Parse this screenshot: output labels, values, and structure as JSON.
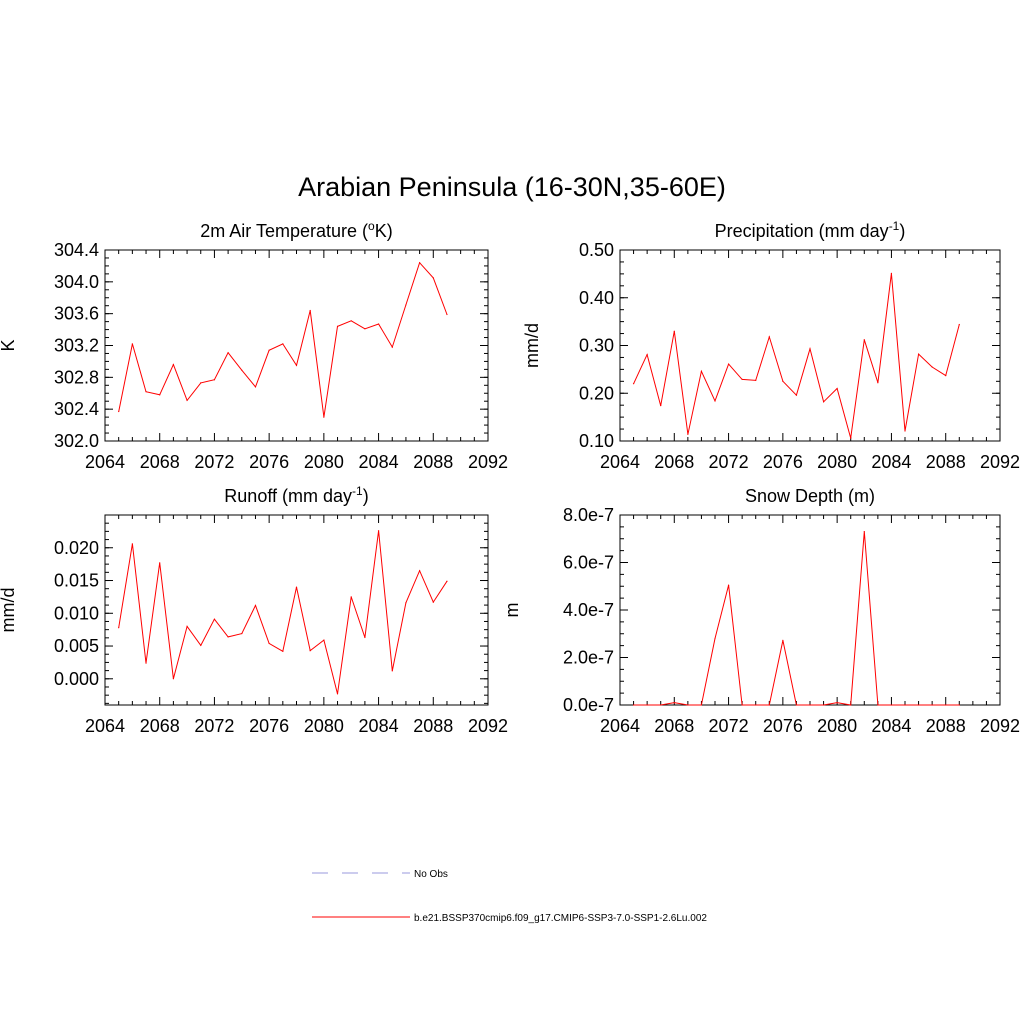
{
  "figure": {
    "title": "Arabian Peninsula (16-30N,35-60E)"
  },
  "legend": {
    "items": [
      {
        "label": "No Obs",
        "color": "#9999dd",
        "style": "dashed"
      },
      {
        "label": "b.e21.BSSP370cmip6.f09_g17.CMIP6-SSP3-7.0-SSP1-2.6Lu.002",
        "color": "#ff0000",
        "style": "solid"
      }
    ]
  },
  "chart_data": [
    {
      "type": "line",
      "title": "2m Air Temperature (",
      "title_sup": "o",
      "title_end": "K)",
      "ylabel": "K",
      "xlim": [
        2064,
        2092
      ],
      "ylim": [
        302.0,
        304.4
      ],
      "xticks": [
        "2064",
        "2068",
        "2072",
        "2076",
        "2080",
        "2084",
        "2088",
        "2092"
      ],
      "yticks": [
        "302.0",
        "302.4",
        "302.8",
        "303.2",
        "303.6",
        "304.0",
        "304.4"
      ],
      "color": "#ff0000",
      "x": [
        2065,
        2066,
        2067,
        2068,
        2069,
        2070,
        2071,
        2072,
        2073,
        2074,
        2075,
        2076,
        2077,
        2078,
        2079,
        2080,
        2081,
        2082,
        2083,
        2084,
        2085,
        2086,
        2087,
        2088,
        2089
      ],
      "values": [
        302.37,
        303.22,
        302.62,
        302.58,
        302.96,
        302.51,
        302.73,
        302.77,
        303.11,
        302.89,
        302.68,
        303.14,
        303.22,
        302.95,
        303.64,
        302.3,
        303.44,
        303.51,
        303.41,
        303.47,
        303.18,
        303.71,
        304.24,
        304.05,
        303.59
      ]
    },
    {
      "type": "line",
      "title": "Precipitation (mm day",
      "title_sup": "-1",
      "title_end": ")",
      "ylabel": "mm/d",
      "xlim": [
        2064,
        2092
      ],
      "ylim": [
        0.1,
        0.5
      ],
      "xticks": [
        "2064",
        "2068",
        "2072",
        "2076",
        "2080",
        "2084",
        "2088",
        "2092"
      ],
      "yticks": [
        "0.10",
        "0.20",
        "0.30",
        "0.40",
        "0.50"
      ],
      "color": "#ff0000",
      "x": [
        2065,
        2066,
        2067,
        2068,
        2069,
        2070,
        2071,
        2072,
        2073,
        2074,
        2075,
        2076,
        2077,
        2078,
        2079,
        2080,
        2081,
        2082,
        2083,
        2084,
        2085,
        2086,
        2087,
        2088,
        2089
      ],
      "values": [
        0.22,
        0.281,
        0.174,
        0.33,
        0.114,
        0.246,
        0.184,
        0.261,
        0.229,
        0.227,
        0.318,
        0.225,
        0.196,
        0.293,
        0.182,
        0.21,
        0.106,
        0.312,
        0.222,
        0.451,
        0.121,
        0.282,
        0.255,
        0.237,
        0.344
      ]
    },
    {
      "type": "line",
      "title": "Runoff (mm day",
      "title_sup": "-1",
      "title_end": ")",
      "ylabel": "mm/d",
      "xlim": [
        2064,
        2092
      ],
      "ylim": [
        -0.004,
        0.025
      ],
      "xticks": [
        "2064",
        "2068",
        "2072",
        "2076",
        "2080",
        "2084",
        "2088",
        "2092"
      ],
      "yticks": [
        "0.000",
        "0.005",
        "0.010",
        "0.015",
        "0.020"
      ],
      "ytick_values": [
        0.0,
        0.005,
        0.01,
        0.015,
        0.02
      ],
      "color": "#ff0000",
      "x": [
        2065,
        2066,
        2067,
        2068,
        2069,
        2070,
        2071,
        2072,
        2073,
        2074,
        2075,
        2076,
        2077,
        2078,
        2079,
        2080,
        2081,
        2082,
        2083,
        2084,
        2085,
        2086,
        2087,
        2088,
        2089
      ],
      "values": [
        0.0078,
        0.0206,
        0.0024,
        0.0177,
        0.0,
        0.008,
        0.0051,
        0.0091,
        0.0064,
        0.0069,
        0.0112,
        0.0054,
        0.0042,
        0.014,
        0.0043,
        0.0059,
        -0.0023,
        0.0125,
        0.0063,
        0.0226,
        0.0012,
        0.0116,
        0.0165,
        0.0117,
        0.0149
      ]
    },
    {
      "type": "line",
      "title": "Snow Depth (m)",
      "title_sup": "",
      "title_end": "",
      "ylabel": "m",
      "xlim": [
        2064,
        2092
      ],
      "ylim": [
        0.0,
        8e-07
      ],
      "xticks": [
        "2064",
        "2068",
        "2072",
        "2076",
        "2080",
        "2084",
        "2088",
        "2092"
      ],
      "yticks": [
        "0.0e-7",
        "2.0e-7",
        "4.0e-7",
        "6.0e-7",
        "8.0e-7"
      ],
      "color": "#ff0000",
      "x": [
        2065,
        2066,
        2067,
        2068,
        2069,
        2070,
        2071,
        2072,
        2073,
        2074,
        2075,
        2076,
        2077,
        2078,
        2079,
        2080,
        2081,
        2082,
        2083,
        2084,
        2085,
        2086,
        2087,
        2088,
        2089
      ],
      "values": [
        0,
        0,
        0,
        1e-08,
        0,
        0,
        2.8e-07,
        5.05e-07,
        0,
        0,
        0,
        2.72e-07,
        0,
        0,
        0,
        1e-08,
        0,
        7.3e-07,
        0,
        0,
        0,
        0,
        0,
        0,
        0
      ]
    }
  ]
}
